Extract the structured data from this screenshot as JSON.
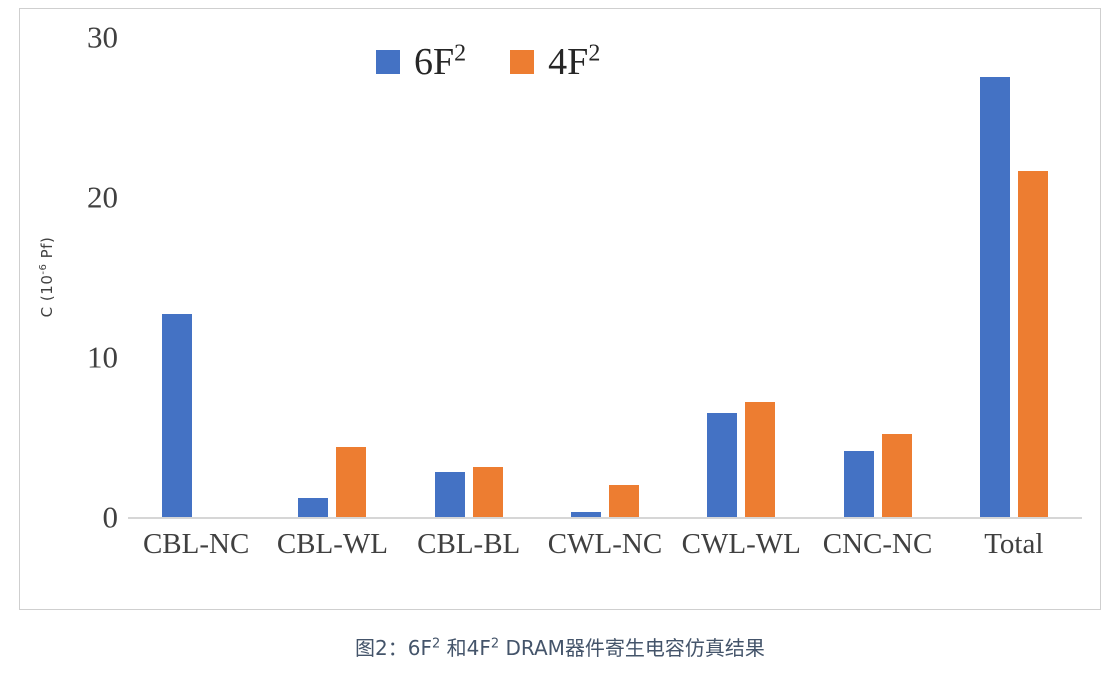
{
  "chart_data": {
    "type": "bar",
    "title": "",
    "categories": [
      "CBL-NC",
      "CBL-WL",
      "CBL-BL",
      "CWL-NC",
      "CWL-WL",
      "CNC-NC",
      "Total"
    ],
    "series": [
      {
        "key": "6F2",
        "name": "6F²",
        "color": "#4472C4",
        "values": [
          12.7,
          1.2,
          2.8,
          0.3,
          6.5,
          4.1,
          27.5
        ]
      },
      {
        "key": "4F2",
        "name": "4F²",
        "color": "#ED7D31",
        "values": [
          0,
          4.4,
          3.1,
          2.0,
          7.2,
          5.2,
          21.6
        ]
      }
    ],
    "xlabel": "",
    "ylabel": "C (10⁻⁶ Pf)",
    "ylim": [
      0,
      30
    ],
    "yticks": [
      0,
      10,
      20,
      30
    ],
    "grid": false,
    "legend_position": "top-center"
  },
  "legend": {
    "items": [
      {
        "base": "6F",
        "sup": "2"
      },
      {
        "base": "4F",
        "sup": "2"
      }
    ]
  },
  "axis": {
    "ylabel_base": "C (10",
    "ylabel_sup": "-6",
    "ylabel_rest": " Pf)"
  },
  "caption": {
    "parts": {
      "p0": "图2：6F",
      "s0": "2",
      "p1": " 和4F",
      "s1": "2",
      "p2": " DRAM器件寄生电容仿真结果"
    }
  },
  "colors": {
    "series_6F2": "#4472C4",
    "series_4F2": "#ED7D31",
    "axis_line": "#d6d6d6",
    "border": "#cfcfcf",
    "caption_text": "#44546A"
  }
}
